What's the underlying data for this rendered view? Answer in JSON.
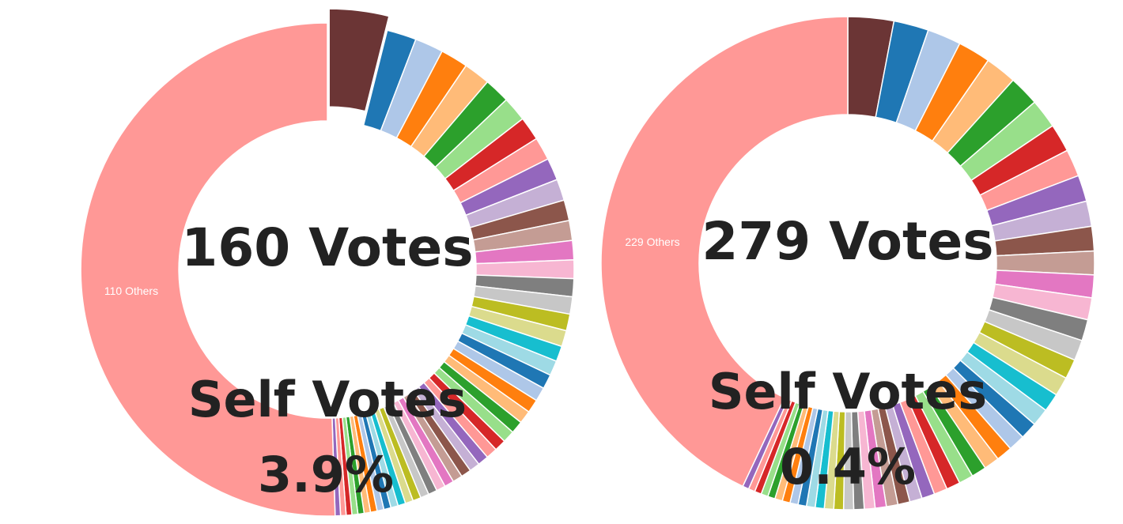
{
  "palette": [
    "#1f77b4",
    "#aec7e8",
    "#ff7f0e",
    "#ffbb78",
    "#2ca02c",
    "#98df8a",
    "#d62728",
    "#ff9896",
    "#9467bd",
    "#c5b0d5",
    "#8c564b",
    "#c49c94",
    "#e377c2",
    "#f7b6d2",
    "#7f7f7f",
    "#c7c7c7",
    "#bcbd22",
    "#dbdb8d",
    "#17becf",
    "#9edae5"
  ],
  "chart_data": [
    {
      "type": "pie",
      "donut": true,
      "votes_label": "160 Votes",
      "self_votes_label": "Self Votes",
      "self_votes_pct_label": "3.9%",
      "others_label": "110 Others",
      "self_vote_slice": {
        "color": "#6b3535",
        "share": 0.039,
        "exploded": true
      },
      "individual_slice_count": 49,
      "others_share": 0.505,
      "others_color": "#ff9896"
    },
    {
      "type": "pie",
      "donut": true,
      "votes_label": "279 Votes",
      "self_votes_label": "Self Votes",
      "self_votes_pct_label": "0.4%",
      "others_label": "229 Others",
      "self_vote_slice": {
        "color": "#6b3535",
        "share": 0.004,
        "exploded": false
      },
      "individual_slice_count": 49,
      "others_share": 0.43,
      "others_color": "#ff9896"
    }
  ]
}
